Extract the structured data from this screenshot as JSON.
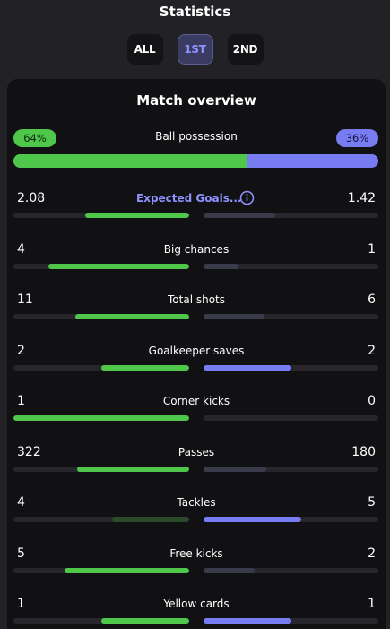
{
  "header": {
    "title": "Statistics"
  },
  "tabs": [
    {
      "label": "ALL",
      "active": false
    },
    {
      "label": "1ST",
      "active": true
    },
    {
      "label": "2ND",
      "active": false
    }
  ],
  "overview": {
    "title": "Match overview",
    "possession": {
      "label": "Ball possession",
      "home": "64%",
      "away": "36%",
      "home_share": 0.64
    }
  },
  "colors": {
    "home_win": "#4fc74a",
    "home_lose": "#2b4a2b",
    "away_win": "#787cf3",
    "away_lose": "#3a3b4a",
    "link": "#8f92ff"
  },
  "stats": [
    {
      "label": "Expected Goals...",
      "home": "2.08",
      "away": "1.42",
      "home_share": 0.59,
      "away_share": 0.41,
      "link": true,
      "icon": "info-icon"
    },
    {
      "label": "Big chances",
      "home": "4",
      "away": "1",
      "home_share": 0.8,
      "away_share": 0.2
    },
    {
      "label": "Total shots",
      "home": "11",
      "away": "6",
      "home_share": 0.65,
      "away_share": 0.35
    },
    {
      "label": "Goalkeeper saves",
      "home": "2",
      "away": "2",
      "home_share": 0.5,
      "away_share": 0.5
    },
    {
      "label": "Corner kicks",
      "home": "1",
      "away": "0",
      "home_share": 1.0,
      "away_share": 0.0
    },
    {
      "label": "Passes",
      "home": "322",
      "away": "180",
      "home_share": 0.64,
      "away_share": 0.36
    },
    {
      "label": "Tackles",
      "home": "4",
      "away": "5",
      "home_share": 0.44,
      "away_share": 0.56
    },
    {
      "label": "Free kicks",
      "home": "5",
      "away": "2",
      "home_share": 0.71,
      "away_share": 0.29
    },
    {
      "label": "Yellow cards",
      "home": "1",
      "away": "1",
      "home_share": 0.5,
      "away_share": 0.5
    }
  ]
}
